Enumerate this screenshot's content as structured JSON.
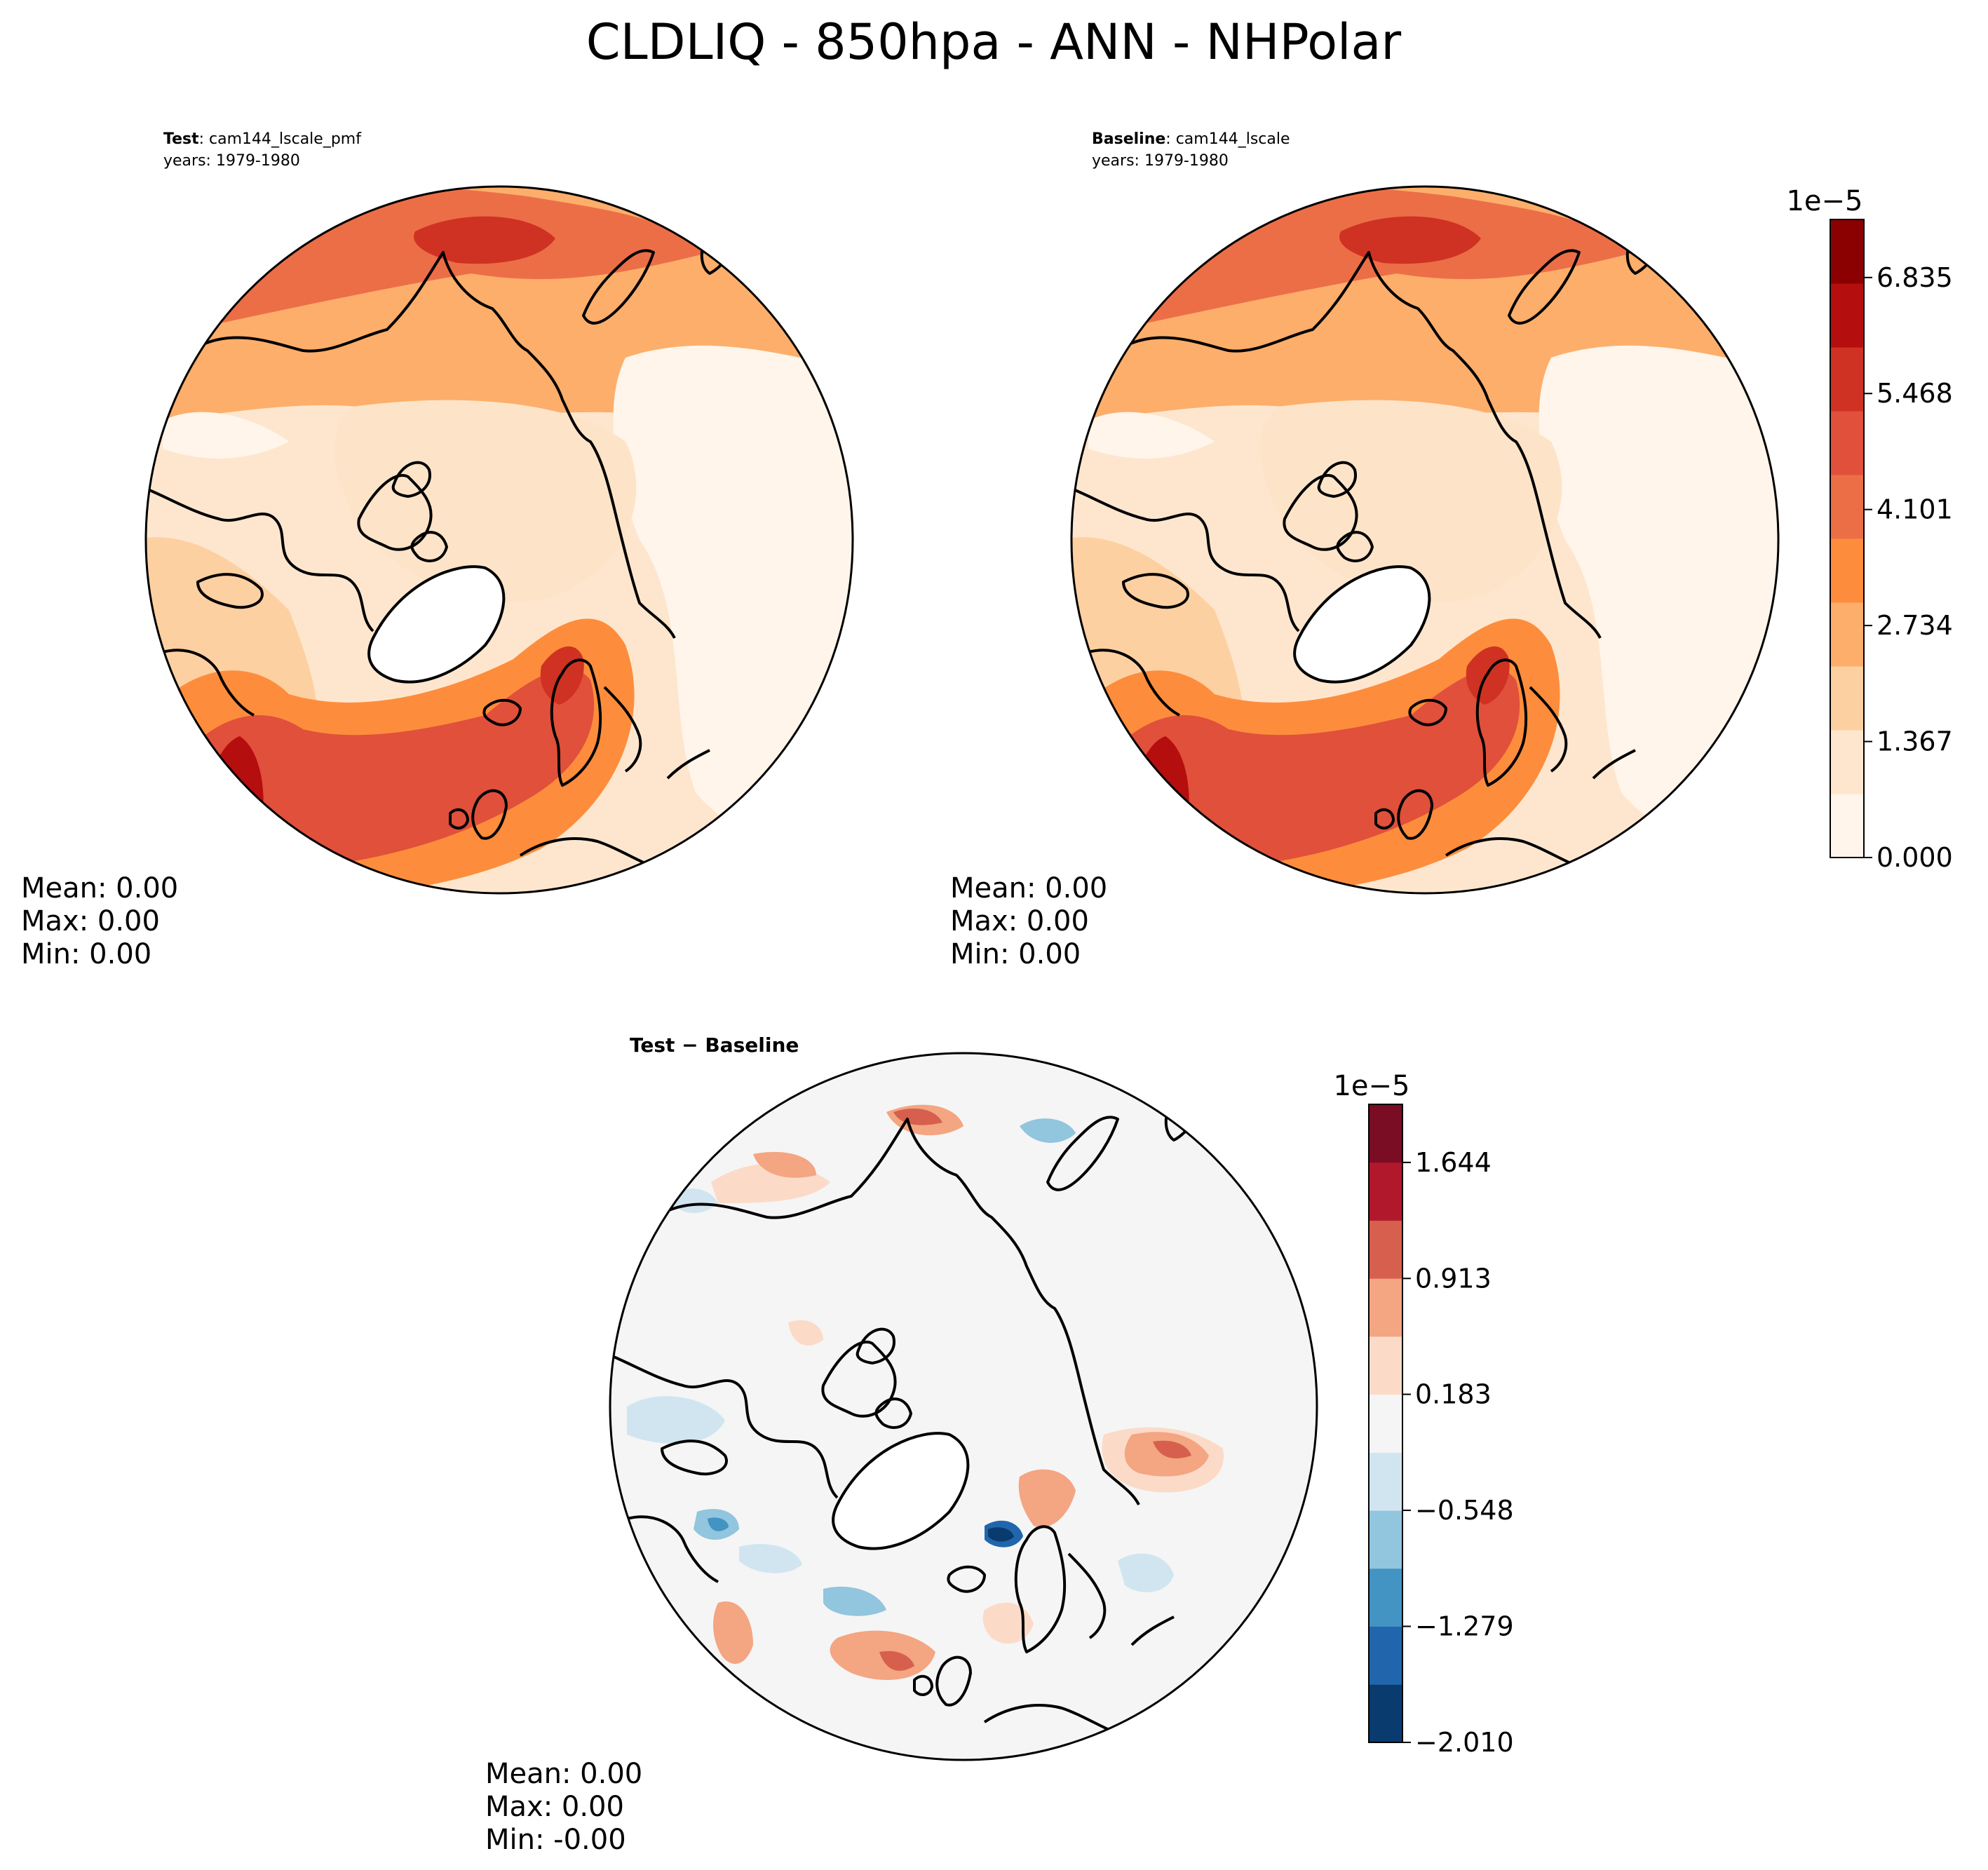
{
  "figure": {
    "title": "CLDLIQ - 850hpa - ANN - NHPolar",
    "colors": {
      "coast": "#000000",
      "outline": "#000000",
      "reds": [
        "#fff5eb",
        "#fee6ce",
        "#fdd0a2",
        "#fdae6b",
        "#fd8d3c",
        "#ec6e47",
        "#e0503b",
        "#cf3222",
        "#b50e0e",
        "#8b0000"
      ],
      "diverging": [
        "#0a3b6f",
        "#2166ac",
        "#4393c3",
        "#92c5de",
        "#d1e5f0",
        "#f5f5f5",
        "#fbdbc8",
        "#f4a582",
        "#d6604d",
        "#b2182b",
        "#7a0c23"
      ]
    }
  },
  "panels": {
    "test": {
      "title_bold": "Test",
      "title_rest": ": cam144_lscale_pmf",
      "years": "years: 1979-1980",
      "mean": "Mean:  0.00",
      "max": "Max:  0.00",
      "min": "Min:  0.00"
    },
    "baseline": {
      "title_bold": "Baseline",
      "title_rest": ": cam144_lscale",
      "years": "years: 1979-1980",
      "mean": "Mean:  0.00",
      "max": "Max:  0.00",
      "min": "Min:  0.00"
    },
    "diff": {
      "title": "Test − Baseline",
      "mean": "Mean:  0.00",
      "max": "Max:  0.00",
      "min": "Min: -0.00"
    }
  },
  "colorbars": {
    "main": {
      "exponent": "1e−5",
      "ticks": [
        "0.000",
        "1.367",
        "2.734",
        "4.101",
        "5.468",
        "6.835"
      ],
      "tick_values": [
        0,
        1.367,
        2.734,
        4.101,
        5.468,
        6.835
      ],
      "range": [
        0,
        7.519
      ]
    },
    "diff": {
      "exponent": "1e−5",
      "ticks": [
        "−2.010",
        "−1.279",
        "−0.548",
        "0.183",
        "0.913",
        "1.644"
      ],
      "tick_values": [
        -2.01,
        -1.279,
        -0.548,
        0.183,
        0.913,
        1.644
      ],
      "range": [
        -2.01,
        2.01
      ]
    }
  }
}
